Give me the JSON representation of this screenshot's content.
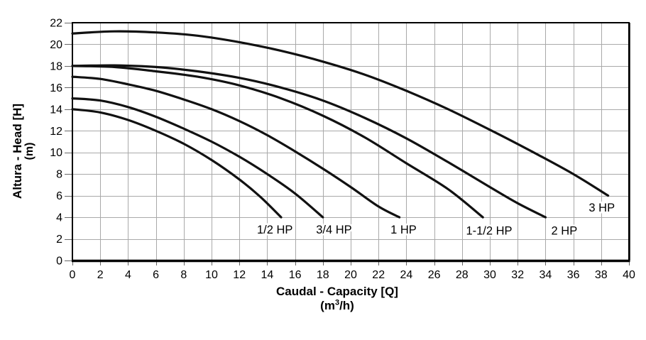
{
  "figure": {
    "background": "#ffffff",
    "curve_color": "#111111",
    "grid_color": "#a9a9a9",
    "frame_color": "#000000",
    "tick_color": "#666666",
    "text_color": "#000000"
  },
  "chart_data": {
    "type": "line",
    "title": "",
    "xlabel": "Caudal - Capacity [Q]",
    "xlabel_unit": "(m³/h)",
    "ylabel": "Altura - Head [H]",
    "ylabel_unit": "(m)",
    "xlim": [
      0,
      40
    ],
    "ylim": [
      0,
      22
    ],
    "xticks": [
      0,
      2,
      4,
      6,
      8,
      10,
      12,
      14,
      16,
      18,
      20,
      22,
      24,
      26,
      28,
      30,
      32,
      34,
      36,
      38,
      40
    ],
    "yticks": [
      0,
      2,
      4,
      6,
      8,
      10,
      12,
      14,
      16,
      18,
      20,
      22
    ],
    "grid": true,
    "legend_position": "inline-labels",
    "series": [
      {
        "name": "1/2 HP",
        "label_pos": {
          "x": 14.55,
          "y": 2.85
        },
        "points": [
          [
            0,
            14.0
          ],
          [
            2,
            13.7
          ],
          [
            4,
            13.0
          ],
          [
            6,
            12.0
          ],
          [
            8,
            10.8
          ],
          [
            10,
            9.3
          ],
          [
            12,
            7.5
          ],
          [
            13.5,
            5.9
          ],
          [
            15,
            4.0
          ]
        ]
      },
      {
        "name": "3/4 HP",
        "label_pos": {
          "x": 18.8,
          "y": 2.85
        },
        "points": [
          [
            0,
            15.0
          ],
          [
            2,
            14.8
          ],
          [
            4,
            14.2
          ],
          [
            6,
            13.3
          ],
          [
            8,
            12.2
          ],
          [
            10,
            11.0
          ],
          [
            12,
            9.6
          ],
          [
            14,
            8.0
          ],
          [
            16,
            6.2
          ],
          [
            18,
            4.0
          ]
        ]
      },
      {
        "name": "1 HP",
        "label_pos": {
          "x": 23.8,
          "y": 2.85
        },
        "points": [
          [
            0,
            17.0
          ],
          [
            2,
            16.8
          ],
          [
            4,
            16.3
          ],
          [
            6,
            15.7
          ],
          [
            8,
            14.9
          ],
          [
            10,
            14.0
          ],
          [
            12,
            12.9
          ],
          [
            14,
            11.6
          ],
          [
            16,
            10.1
          ],
          [
            18,
            8.5
          ],
          [
            20,
            6.8
          ],
          [
            22,
            5.0
          ],
          [
            23.5,
            4.0
          ]
        ]
      },
      {
        "name": "1-1/2 HP",
        "label_pos": {
          "x": 29.95,
          "y": 2.75
        },
        "points": [
          [
            0,
            18.0
          ],
          [
            3,
            17.9
          ],
          [
            6,
            17.5
          ],
          [
            9,
            17.0
          ],
          [
            12,
            16.2
          ],
          [
            15,
            15.0
          ],
          [
            18,
            13.4
          ],
          [
            21,
            11.4
          ],
          [
            24,
            9.0
          ],
          [
            27,
            6.6
          ],
          [
            29.5,
            4.0
          ]
        ]
      },
      {
        "name": "2 HP",
        "label_pos": {
          "x": 35.35,
          "y": 2.75
        },
        "points": [
          [
            0,
            18.0
          ],
          [
            3,
            18.05
          ],
          [
            6,
            17.9
          ],
          [
            9,
            17.5
          ],
          [
            12,
            16.9
          ],
          [
            15,
            16.0
          ],
          [
            18,
            14.8
          ],
          [
            21,
            13.2
          ],
          [
            24,
            11.3
          ],
          [
            27,
            9.1
          ],
          [
            30,
            6.8
          ],
          [
            32,
            5.3
          ],
          [
            34,
            4.0
          ]
        ]
      },
      {
        "name": "3 HP",
        "label_pos": {
          "x": 38.05,
          "y": 4.9
        },
        "points": [
          [
            0,
            21.0
          ],
          [
            3,
            21.2
          ],
          [
            6,
            21.1
          ],
          [
            9,
            20.8
          ],
          [
            12,
            20.2
          ],
          [
            15,
            19.4
          ],
          [
            18,
            18.4
          ],
          [
            21,
            17.2
          ],
          [
            24,
            15.7
          ],
          [
            27,
            14.0
          ],
          [
            30,
            12.1
          ],
          [
            33,
            10.1
          ],
          [
            36,
            8.0
          ],
          [
            38.5,
            6.0
          ]
        ]
      }
    ]
  }
}
